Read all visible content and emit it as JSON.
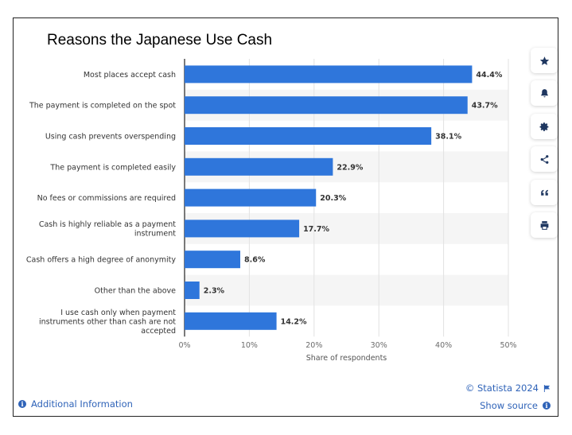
{
  "chart_data": {
    "type": "bar",
    "orientation": "horizontal",
    "title": "Reasons the Japanese Use Cash",
    "xlabel": "Share of respondents",
    "ylabel": "",
    "xlim": [
      0,
      50
    ],
    "ticks": [
      "0%",
      "10%",
      "20%",
      "30%",
      "40%",
      "50%"
    ],
    "tick_values": [
      0,
      10,
      20,
      30,
      40,
      50
    ],
    "grid": true,
    "bar_color": "#2f76db",
    "categories": [
      [
        "Most places accept cash"
      ],
      [
        "The payment is completed on the spot"
      ],
      [
        "Using cash prevents overspending"
      ],
      [
        "The payment is completed easily"
      ],
      [
        "No fees or commissions are required"
      ],
      [
        "Cash is highly reliable as a payment",
        "instrument"
      ],
      [
        "Cash offers a high degree of anonymity"
      ],
      [
        "Other than the above"
      ],
      [
        "I use cash only when payment",
        "instruments other than cash are not",
        "accepted"
      ]
    ],
    "values": [
      44.4,
      43.7,
      38.1,
      22.9,
      20.3,
      17.7,
      8.6,
      2.3,
      14.2
    ],
    "value_labels": [
      "44.4%",
      "43.7%",
      "38.1%",
      "22.9%",
      "20.3%",
      "17.7%",
      "8.6%",
      "2.3%",
      "14.2%"
    ]
  },
  "toolbar": {
    "icons": [
      "star-icon",
      "bell-icon",
      "gear-icon",
      "share-icon",
      "quote-icon",
      "print-icon"
    ]
  },
  "footer": {
    "additional_info": "Additional Information",
    "credit": "© Statista 2024",
    "show_source": "Show source"
  }
}
